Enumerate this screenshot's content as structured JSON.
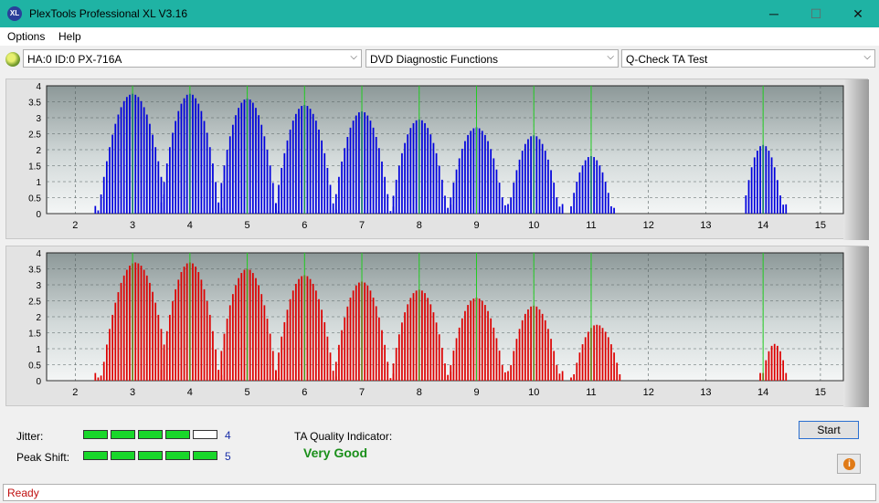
{
  "window": {
    "title": "PlexTools Professional XL V3.16",
    "icon": "XL",
    "minimize_glyph": "─",
    "maximize_glyph": "☐",
    "close_glyph": "✕"
  },
  "menu": {
    "items": [
      {
        "label": "Options"
      },
      {
        "label": "Help"
      }
    ]
  },
  "toolbar": {
    "drive_select": {
      "value": "HA:0 ID:0  PX-716A"
    },
    "function_select": {
      "value": "DVD Diagnostic Functions"
    },
    "test_select": {
      "value": "Q-Check TA Test"
    }
  },
  "charts": {
    "top_bar_color": "#0000dd",
    "bottom_bar_color": "#dd0000",
    "peak_line_color": "#22cc22"
  },
  "chart_data": [
    {
      "type": "bar",
      "series": [
        {
          "values": []
        }
      ],
      "xlim": [
        1.5,
        15.4
      ],
      "ylim": [
        0,
        4
      ],
      "x_ticks": [
        "2",
        "3",
        "4",
        "5",
        "6",
        "7",
        "8",
        "9",
        "10",
        "11",
        "12",
        "13",
        "14",
        "15"
      ],
      "y_ticks": [
        "0",
        "0.5",
        "1",
        "1.5",
        "2",
        "2.5",
        "3",
        "3.5",
        "4"
      ],
      "peaks": [
        {
          "center": 3.0,
          "height": 3.75,
          "start": 2.35,
          "end": 3.55
        },
        {
          "center": 4.0,
          "height": 3.75,
          "start": 3.5,
          "end": 4.55
        },
        {
          "center": 5.0,
          "height": 3.6,
          "start": 4.5,
          "end": 5.55
        },
        {
          "center": 6.0,
          "height": 3.4,
          "start": 5.5,
          "end": 6.55
        },
        {
          "center": 7.0,
          "height": 3.2,
          "start": 6.55,
          "end": 7.55
        },
        {
          "center": 8.0,
          "height": 2.95,
          "start": 7.55,
          "end": 8.55
        },
        {
          "center": 9.0,
          "height": 2.7,
          "start": 8.55,
          "end": 9.55
        },
        {
          "center": 10.0,
          "height": 2.45,
          "start": 9.6,
          "end": 10.5
        },
        {
          "center": 11.0,
          "height": 1.8,
          "start": 10.65,
          "end": 11.4
        },
        {
          "center": 14.0,
          "height": 2.15,
          "start": 13.7,
          "end": 14.4
        }
      ],
      "peak_lines": [
        3,
        4,
        5,
        6,
        7,
        8,
        9,
        10,
        11,
        14
      ],
      "grid": true
    },
    {
      "type": "bar",
      "series": [
        {
          "values": []
        }
      ],
      "xlim": [
        1.5,
        15.4
      ],
      "ylim": [
        0,
        4
      ],
      "x_ticks": [
        "2",
        "3",
        "4",
        "5",
        "6",
        "7",
        "8",
        "9",
        "10",
        "11",
        "12",
        "13",
        "14",
        "15"
      ],
      "y_ticks": [
        "0",
        "0.5",
        "1",
        "1.5",
        "2",
        "2.5",
        "3",
        "3.5",
        "4"
      ],
      "peaks": [
        {
          "center": 3.05,
          "height": 3.7,
          "start": 2.35,
          "end": 3.55
        },
        {
          "center": 4.0,
          "height": 3.7,
          "start": 3.5,
          "end": 4.55
        },
        {
          "center": 5.0,
          "height": 3.5,
          "start": 4.5,
          "end": 5.55
        },
        {
          "center": 6.0,
          "height": 3.3,
          "start": 5.5,
          "end": 6.55
        },
        {
          "center": 7.0,
          "height": 3.1,
          "start": 6.55,
          "end": 7.55
        },
        {
          "center": 8.0,
          "height": 2.85,
          "start": 7.55,
          "end": 8.55
        },
        {
          "center": 9.0,
          "height": 2.6,
          "start": 8.55,
          "end": 9.55
        },
        {
          "center": 10.0,
          "height": 2.35,
          "start": 9.6,
          "end": 10.5
        },
        {
          "center": 11.1,
          "height": 1.75,
          "start": 10.65,
          "end": 11.5
        },
        {
          "center": 14.2,
          "height": 1.15,
          "start": 13.95,
          "end": 14.4
        }
      ],
      "peak_lines": [
        3,
        4,
        5,
        6,
        7,
        8,
        9,
        10,
        11,
        14
      ],
      "grid": true
    }
  ],
  "results": {
    "jitter": {
      "label": "Jitter:",
      "value": "4",
      "level": 4,
      "max": 5
    },
    "peak_shift": {
      "label": "Peak Shift:",
      "value": "5",
      "level": 5,
      "max": 5
    },
    "ta_quality": {
      "label": "TA Quality Indicator:",
      "value": "Very Good"
    }
  },
  "buttons": {
    "start": "Start",
    "info_icon": "i"
  },
  "status": {
    "text": "Ready"
  }
}
